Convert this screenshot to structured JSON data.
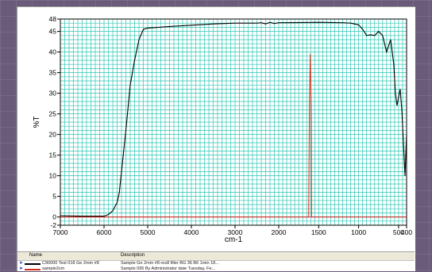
{
  "chart_data": {
    "type": "line",
    "ylabel": "%T",
    "xlabel": "cm-1",
    "x_axis_reversed": true,
    "xlim": [
      7000,
      400
    ],
    "ylim": [
      -2,
      48
    ],
    "x_tick_labels": [
      "7000",
      "6000",
      "5000",
      "4000",
      "3000",
      "2000",
      "1500",
      "1000",
      "500",
      "400"
    ],
    "x_tick_values": [
      7000,
      6000,
      5000,
      4000,
      3000,
      2000,
      1500,
      1000,
      500,
      400
    ],
    "y_tick_labels": [
      "48",
      "45",
      "40",
      "35",
      "30",
      "25",
      "20",
      "15",
      "10",
      "5",
      "0",
      "-2"
    ],
    "y_tick_values": [
      48,
      45,
      40,
      35,
      30,
      25,
      20,
      15,
      10,
      5,
      0,
      -2
    ],
    "grid": true,
    "grid_color": "#2dc6b4",
    "series": [
      {
        "name": "C90000 Test 018 Ge 2mm #8",
        "color": "#000000",
        "x": [
          7000,
          6500,
          6000,
          5900,
          5800,
          5700,
          5650,
          5600,
          5500,
          5400,
          5300,
          5200,
          5100,
          5000,
          4500,
          4000,
          3500,
          3000,
          2500,
          2400,
          2300,
          2200,
          2100,
          2000,
          1500,
          1200,
          1100,
          1000,
          950,
          900,
          850,
          800,
          750,
          700,
          650,
          600,
          560,
          540,
          520,
          500,
          480,
          460,
          440,
          420,
          400
        ],
        "y": [
          0.3,
          0.2,
          0.2,
          0.6,
          1.5,
          3.5,
          6,
          11,
          21,
          32,
          38,
          43,
          45.5,
          45.8,
          46.2,
          46.5,
          46.8,
          47,
          47,
          47.1,
          46.8,
          47.2,
          46.9,
          47.1,
          47.2,
          47.1,
          47,
          46.6,
          45.5,
          44,
          44.2,
          44,
          45,
          44,
          40,
          43,
          37,
          30,
          27,
          29,
          31,
          26,
          18,
          10,
          20
        ]
      },
      {
        "name": "sample2cm",
        "color": "#d0301c",
        "x": [
          7000,
          5000,
          3000,
          2000,
          1650,
          1625,
          1615,
          1605,
          1595,
          1590,
          1570,
          1500,
          1000,
          400
        ],
        "y": [
          0,
          0,
          0,
          0,
          0,
          0,
          28,
          39.5,
          27,
          0,
          0,
          0,
          0,
          0
        ]
      }
    ]
  },
  "list_panel": {
    "headers": {
      "name": "Name",
      "description": "Description"
    },
    "rows": [
      {
        "name": "C90000 Test 018 Ge 2mm #8",
        "description": "Sample Ge 2mm #8 res8 filler BG 36 B6 1min 18...",
        "color": "#000000"
      },
      {
        "name": "sample2cm",
        "description": "Sample 095 By Administrator date Tuesday, Fe...",
        "color": "#d0301c"
      }
    ]
  }
}
